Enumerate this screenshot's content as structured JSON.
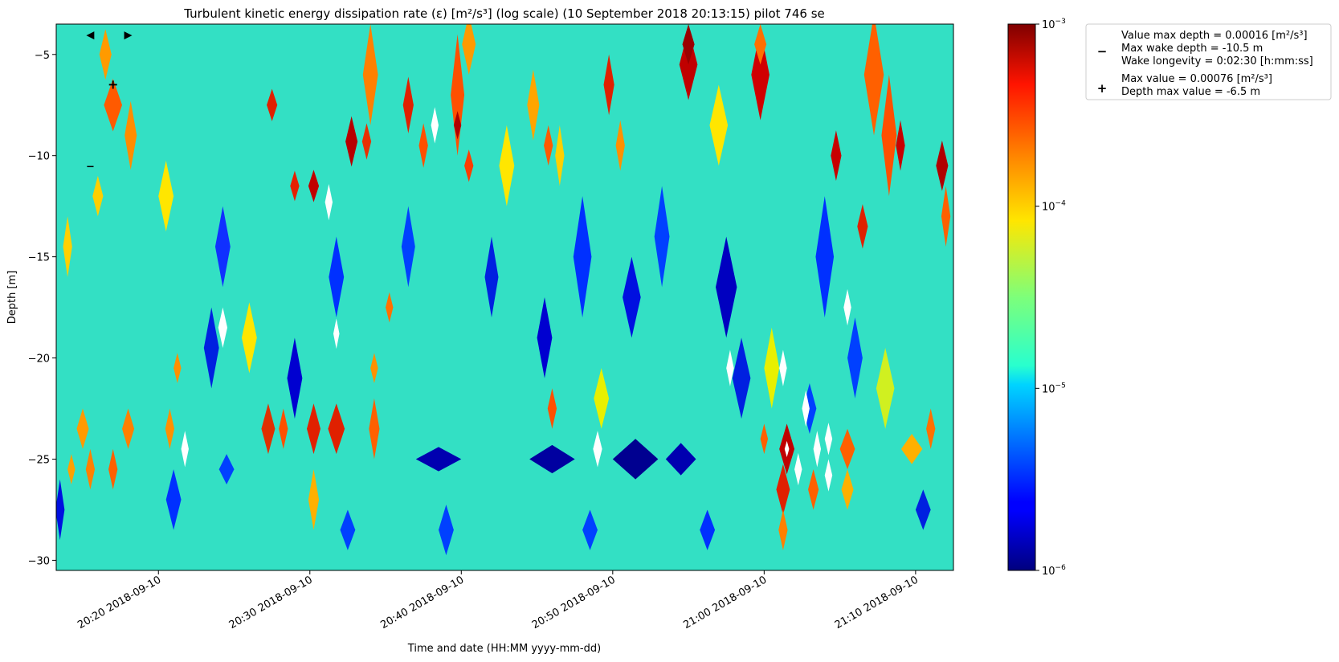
{
  "chart_data": {
    "type": "heatmap",
    "title": "Turbulent kinetic energy dissipation rate (ε) [m²/s³] (log scale) (10 September 2018 20:13:15) pilot 746 se",
    "xlabel": "Time and date (HH:MM yyyy-mm-dd)",
    "ylabel": "Depth [m]",
    "x_range": [
      "2018-09-10 20:13:15",
      "2018-09-10 21:12:30"
    ],
    "ylim": [
      -30.5,
      -3.5
    ],
    "x_ticks": [
      {
        "t": "2018-09-10 20:20",
        "label": "20:20 2018-09-10"
      },
      {
        "t": "2018-09-10 20:30",
        "label": "20:30 2018-09-10"
      },
      {
        "t": "2018-09-10 20:40",
        "label": "20:40 2018-09-10"
      },
      {
        "t": "2018-09-10 20:50",
        "label": "20:50 2018-09-10"
      },
      {
        "t": "2018-09-10 21:00",
        "label": "21:00 2018-09-10"
      },
      {
        "t": "2018-09-10 21:10",
        "label": "21:10 2018-09-10"
      }
    ],
    "y_ticks": [
      {
        "v": -5,
        "label": "−5"
      },
      {
        "v": -10,
        "label": "−10"
      },
      {
        "v": -15,
        "label": "−15"
      },
      {
        "v": -20,
        "label": "−20"
      },
      {
        "v": -25,
        "label": "−25"
      },
      {
        "v": -30,
        "label": "−30"
      }
    ],
    "colorbar": {
      "scale": "log",
      "range": [
        1e-06,
        0.001
      ],
      "colormap": "jet",
      "ticks": [
        {
          "v": 0.001,
          "base": "10",
          "exp": "−3"
        },
        {
          "v": 0.0001,
          "base": "10",
          "exp": "−4"
        },
        {
          "v": 1e-05,
          "base": "10",
          "exp": "−5"
        },
        {
          "v": 1e-06,
          "base": "10",
          "exp": "−6"
        }
      ]
    },
    "markers": [
      {
        "symbol": "◀",
        "t": "2018-09-10 20:15:30",
        "depth": -4.0
      },
      {
        "symbol": "▶",
        "t": "2018-09-10 20:18:00",
        "depth": -4.0
      },
      {
        "symbol": "+",
        "t": "2018-09-10 20:17:00",
        "depth": -6.5
      },
      {
        "symbol": "−",
        "t": "2018-09-10 20:15:30",
        "depth": -10.5
      }
    ],
    "field": {
      "background": "#33e0c4",
      "features": [
        {
          "t": "2018-09-10 20:17:00",
          "depth": -7.5,
          "w": 1.2,
          "h": 2.6,
          "v": "#ff5a00"
        },
        {
          "t": "2018-09-10 20:16:30",
          "depth": -5.0,
          "w": 0.8,
          "h": 2.5,
          "v": "#ff9a00"
        },
        {
          "t": "2018-09-10 20:18:10",
          "depth": -9.0,
          "w": 0.8,
          "h": 3.4,
          "v": "#ff8c00"
        },
        {
          "t": "2018-09-10 20:16:00",
          "depth": -12.0,
          "w": 0.7,
          "h": 2.0,
          "v": "#ffcf00"
        },
        {
          "t": "2018-09-10 20:27:30",
          "depth": -7.5,
          "w": 0.7,
          "h": 1.6,
          "v": "#e02000"
        },
        {
          "t": "2018-09-10 20:29:00",
          "depth": -11.5,
          "w": 0.6,
          "h": 1.5,
          "v": "#e62000"
        },
        {
          "t": "2018-09-10 20:30:15",
          "depth": -11.5,
          "w": 0.7,
          "h": 1.6,
          "v": "#c00000"
        },
        {
          "t": "2018-09-10 20:32:45",
          "depth": -9.3,
          "w": 0.8,
          "h": 2.5,
          "v": "#b80000"
        },
        {
          "t": "2018-09-10 20:34:00",
          "depth": -6.0,
          "w": 1.0,
          "h": 5.0,
          "v": "#ff8000"
        },
        {
          "t": "2018-09-10 20:33:45",
          "depth": -9.3,
          "w": 0.6,
          "h": 1.8,
          "v": "#e83000"
        },
        {
          "t": "2018-09-10 20:36:30",
          "depth": -7.5,
          "w": 0.7,
          "h": 2.8,
          "v": "#e02000"
        },
        {
          "t": "2018-09-10 20:37:30",
          "depth": -9.5,
          "w": 0.6,
          "h": 2.2,
          "v": "#ff5000"
        },
        {
          "t": "2018-09-10 20:39:45",
          "depth": -7.0,
          "w": 0.9,
          "h": 6.0,
          "v": "#ff5000"
        },
        {
          "t": "2018-09-10 20:39:45",
          "depth": -8.5,
          "w": 0.5,
          "h": 1.4,
          "v": "#b00000"
        },
        {
          "t": "2018-09-10 20:40:30",
          "depth": -4.5,
          "w": 0.9,
          "h": 3.0,
          "v": "#ff9a00"
        },
        {
          "t": "2018-09-10 20:40:30",
          "depth": -10.5,
          "w": 0.6,
          "h": 1.6,
          "v": "#ff3c00"
        },
        {
          "t": "2018-09-10 20:44:45",
          "depth": -7.5,
          "w": 0.8,
          "h": 3.5,
          "v": "#ffa500"
        },
        {
          "t": "2018-09-10 20:45:45",
          "depth": -9.5,
          "w": 0.6,
          "h": 2.0,
          "v": "#ff5a00"
        },
        {
          "t": "2018-09-10 20:49:45",
          "depth": -6.5,
          "w": 0.7,
          "h": 3.0,
          "v": "#e02000"
        },
        {
          "t": "2018-09-10 20:50:30",
          "depth": -9.5,
          "w": 0.6,
          "h": 2.5,
          "v": "#ff9000"
        },
        {
          "t": "2018-09-10 20:55:00",
          "depth": -5.5,
          "w": 1.2,
          "h": 3.5,
          "v": "#c00000"
        },
        {
          "t": "2018-09-10 20:55:00",
          "depth": -4.5,
          "w": 0.8,
          "h": 2.0,
          "v": "#9a0000"
        },
        {
          "t": "2018-09-10 20:59:45",
          "depth": -6.0,
          "w": 1.2,
          "h": 4.5,
          "v": "#d00000"
        },
        {
          "t": "2018-09-10 20:59:45",
          "depth": -4.5,
          "w": 0.8,
          "h": 2.0,
          "v": "#ff7000"
        },
        {
          "t": "2018-09-10 21:04:45",
          "depth": -10.0,
          "w": 0.7,
          "h": 2.5,
          "v": "#c80000"
        },
        {
          "t": "2018-09-10 21:06:30",
          "depth": -13.5,
          "w": 0.7,
          "h": 2.2,
          "v": "#e02000"
        },
        {
          "t": "2018-09-10 21:07:15",
          "depth": -6.0,
          "w": 1.3,
          "h": 6.0,
          "v": "#ff6000"
        },
        {
          "t": "2018-09-10 21:08:15",
          "depth": -9.0,
          "w": 1.0,
          "h": 6.0,
          "v": "#ff5000"
        },
        {
          "t": "2018-09-10 21:09:00",
          "depth": -9.5,
          "w": 0.6,
          "h": 2.5,
          "v": "#c80000"
        },
        {
          "t": "2018-09-10 21:11:45",
          "depth": -10.5,
          "w": 0.8,
          "h": 2.5,
          "v": "#b00000"
        },
        {
          "t": "2018-09-10 21:12:00",
          "depth": -13.0,
          "w": 0.6,
          "h": 3.0,
          "v": "#ff6000"
        },
        {
          "t": "2018-09-10 20:18:00",
          "depth": -23.5,
          "w": 0.8,
          "h": 2.0,
          "v": "#ff8000"
        },
        {
          "t": "2018-09-10 20:15:00",
          "depth": -23.5,
          "w": 0.8,
          "h": 2.0,
          "v": "#ff9a00"
        },
        {
          "t": "2018-09-10 20:17:00",
          "depth": -25.5,
          "w": 0.6,
          "h": 2.0,
          "v": "#ff6000"
        },
        {
          "t": "2018-09-10 20:15:30",
          "depth": -25.5,
          "w": 0.6,
          "h": 2.0,
          "v": "#ff8000"
        },
        {
          "t": "2018-09-10 20:14:15",
          "depth": -25.5,
          "w": 0.5,
          "h": 1.5,
          "v": "#ffa000"
        },
        {
          "t": "2018-09-10 20:27:15",
          "depth": -23.5,
          "w": 0.9,
          "h": 2.5,
          "v": "#e03000"
        },
        {
          "t": "2018-09-10 20:28:15",
          "depth": -23.5,
          "w": 0.6,
          "h": 2.0,
          "v": "#ff5000"
        },
        {
          "t": "2018-09-10 20:30:15",
          "depth": -23.5,
          "w": 0.9,
          "h": 2.5,
          "v": "#e02000"
        },
        {
          "t": "2018-09-10 20:31:45",
          "depth": -23.5,
          "w": 1.1,
          "h": 2.5,
          "v": "#e02000"
        },
        {
          "t": "2018-09-10 20:34:15",
          "depth": -23.5,
          "w": 0.7,
          "h": 3.0,
          "v": "#ff6000"
        },
        {
          "t": "2018-09-10 20:34:15",
          "depth": -20.5,
          "w": 0.5,
          "h": 1.5,
          "v": "#ff9000"
        },
        {
          "t": "2018-09-10 20:30:15",
          "depth": -27.0,
          "w": 0.7,
          "h": 3.0,
          "v": "#ffb000"
        },
        {
          "t": "2018-09-10 20:35:15",
          "depth": -17.5,
          "w": 0.5,
          "h": 1.5,
          "v": "#ff7000"
        },
        {
          "t": "2018-09-10 20:46:00",
          "depth": -22.5,
          "w": 0.6,
          "h": 2.0,
          "v": "#ff5000"
        },
        {
          "t": "2018-09-10 21:01:30",
          "depth": -24.5,
          "w": 1.0,
          "h": 2.5,
          "v": "#c00000"
        },
        {
          "t": "2018-09-10 21:01:15",
          "depth": -26.5,
          "w": 0.9,
          "h": 2.5,
          "v": "#e02000"
        },
        {
          "t": "2018-09-10 21:01:15",
          "depth": -28.5,
          "w": 0.6,
          "h": 2.0,
          "v": "#ff8000"
        },
        {
          "t": "2018-09-10 21:00:00",
          "depth": -24.0,
          "w": 0.5,
          "h": 1.5,
          "v": "#ff6000"
        },
        {
          "t": "2018-09-10 21:03:15",
          "depth": -26.5,
          "w": 0.7,
          "h": 2.0,
          "v": "#ff6000"
        },
        {
          "t": "2018-09-10 21:05:30",
          "depth": -24.5,
          "w": 1.0,
          "h": 2.0,
          "v": "#ff6000"
        },
        {
          "t": "2018-09-10 21:05:30",
          "depth": -26.5,
          "w": 0.8,
          "h": 2.0,
          "v": "#ffb000"
        },
        {
          "t": "2018-09-10 21:09:45",
          "depth": -24.5,
          "w": 1.4,
          "h": 1.5,
          "v": "#ffb000"
        },
        {
          "t": "2018-09-10 21:11:00",
          "depth": -23.5,
          "w": 0.6,
          "h": 2.0,
          "v": "#ff7000"
        },
        {
          "t": "2018-09-10 20:20:45",
          "depth": -23.5,
          "w": 0.6,
          "h": 2.0,
          "v": "#ff9000"
        },
        {
          "t": "2018-09-10 20:21:15",
          "depth": -20.5,
          "w": 0.5,
          "h": 1.5,
          "v": "#ff9000"
        },
        {
          "t": "2018-09-10 20:24:15",
          "depth": -14.5,
          "w": 1.0,
          "h": 4.0,
          "v": "#1030ff"
        },
        {
          "t": "2018-09-10 20:23:30",
          "depth": -19.5,
          "w": 1.0,
          "h": 4.0,
          "v": "#0020e0"
        },
        {
          "t": "2018-09-10 20:29:00",
          "depth": -21.0,
          "w": 1.0,
          "h": 4.0,
          "v": "#0000d0"
        },
        {
          "t": "2018-09-10 20:31:45",
          "depth": -16.0,
          "w": 1.0,
          "h": 4.0,
          "v": "#0030ff"
        },
        {
          "t": "2018-09-10 20:36:30",
          "depth": -14.5,
          "w": 0.9,
          "h": 4.0,
          "v": "#0040ff"
        },
        {
          "t": "2018-09-10 20:42:00",
          "depth": -16.0,
          "w": 0.9,
          "h": 4.0,
          "v": "#0020e0"
        },
        {
          "t": "2018-09-10 20:45:30",
          "depth": -19.0,
          "w": 1.0,
          "h": 4.0,
          "v": "#0000d0"
        },
        {
          "t": "2018-09-10 20:48:00",
          "depth": -15.0,
          "w": 1.2,
          "h": 6.0,
          "v": "#0030ff"
        },
        {
          "t": "2018-09-10 20:51:15",
          "depth": -17.0,
          "w": 1.2,
          "h": 4.0,
          "v": "#0010e0"
        },
        {
          "t": "2018-09-10 20:53:15",
          "depth": -14.0,
          "w": 1.0,
          "h": 5.0,
          "v": "#0040ff"
        },
        {
          "t": "2018-09-10 20:57:30",
          "depth": -16.5,
          "w": 1.4,
          "h": 5.0,
          "v": "#0000c0"
        },
        {
          "t": "2018-09-10 20:58:30",
          "depth": -21.0,
          "w": 1.2,
          "h": 4.0,
          "v": "#0020e0"
        },
        {
          "t": "2018-09-10 21:04:00",
          "depth": -15.0,
          "w": 1.2,
          "h": 6.0,
          "v": "#0030ff"
        },
        {
          "t": "2018-09-10 21:06:00",
          "depth": -20.0,
          "w": 1.0,
          "h": 4.0,
          "v": "#0040ff"
        },
        {
          "t": "2018-09-10 20:38:30",
          "depth": -25.0,
          "w": 3.0,
          "h": 1.2,
          "v": "#0000b0"
        },
        {
          "t": "2018-09-10 20:46:00",
          "depth": -25.0,
          "w": 3.0,
          "h": 1.4,
          "v": "#0000a0"
        },
        {
          "t": "2018-09-10 20:51:30",
          "depth": -25.0,
          "w": 3.0,
          "h": 2.0,
          "v": "#000090"
        },
        {
          "t": "2018-09-10 20:54:30",
          "depth": -25.0,
          "w": 2.0,
          "h": 1.6,
          "v": "#0000b0"
        },
        {
          "t": "2018-09-10 20:13:30",
          "depth": -27.5,
          "w": 0.6,
          "h": 3.0,
          "v": "#0010e0"
        },
        {
          "t": "2018-09-10 20:21:00",
          "depth": -27.0,
          "w": 1.0,
          "h": 3.0,
          "v": "#0030ff"
        },
        {
          "t": "2018-09-10 20:24:30",
          "depth": -25.5,
          "w": 1.0,
          "h": 1.5,
          "v": "#0040ff"
        },
        {
          "t": "2018-09-10 20:32:30",
          "depth": -28.5,
          "w": 1.0,
          "h": 2.0,
          "v": "#0040ff"
        },
        {
          "t": "2018-09-10 20:39:00",
          "depth": -28.5,
          "w": 1.0,
          "h": 2.5,
          "v": "#0040ff"
        },
        {
          "t": "2018-09-10 20:48:30",
          "depth": -28.5,
          "w": 1.0,
          "h": 2.0,
          "v": "#0040ff"
        },
        {
          "t": "2018-09-10 20:56:15",
          "depth": -28.5,
          "w": 1.0,
          "h": 2.0,
          "v": "#0030ff"
        },
        {
          "t": "2018-09-10 21:10:30",
          "depth": -27.5,
          "w": 1.0,
          "h": 2.0,
          "v": "#0020e0"
        },
        {
          "t": "2018-09-10 21:03:00",
          "depth": -22.5,
          "w": 0.9,
          "h": 2.5,
          "v": "#0040ff"
        },
        {
          "t": "2018-09-10 20:20:30",
          "depth": -12.0,
          "w": 1.0,
          "h": 3.5,
          "v": "#ffe600"
        },
        {
          "t": "2018-09-10 20:26:00",
          "depth": -19.0,
          "w": 1.0,
          "h": 3.5,
          "v": "#ffe600"
        },
        {
          "t": "2018-09-10 20:43:00",
          "depth": -10.5,
          "w": 1.0,
          "h": 4.0,
          "v": "#ffe600"
        },
        {
          "t": "2018-09-10 20:49:15",
          "depth": -22.0,
          "w": 1.0,
          "h": 3.0,
          "v": "#e8f000"
        },
        {
          "t": "2018-09-10 20:57:00",
          "depth": -8.5,
          "w": 1.2,
          "h": 4.0,
          "v": "#ffe600"
        },
        {
          "t": "2018-09-10 21:00:30",
          "depth": -20.5,
          "w": 1.0,
          "h": 4.0,
          "v": "#e8f000"
        },
        {
          "t": "2018-09-10 21:08:00",
          "depth": -21.5,
          "w": 1.2,
          "h": 4.0,
          "v": "#d0f020"
        },
        {
          "t": "2018-09-10 20:14:00",
          "depth": -14.5,
          "w": 0.6,
          "h": 3.0,
          "v": "#ffd000"
        },
        {
          "t": "2018-09-10 20:46:30",
          "depth": -10.0,
          "w": 0.6,
          "h": 3.0,
          "v": "#ffd000"
        }
      ],
      "gaps": [
        {
          "t": "2018-09-10 20:24:15",
          "depth": -18.5,
          "w": 0.6,
          "h": 2.0
        },
        {
          "t": "2018-09-10 20:31:15",
          "depth": -12.3,
          "w": 0.5,
          "h": 1.8
        },
        {
          "t": "2018-09-10 20:31:45",
          "depth": -18.8,
          "w": 0.4,
          "h": 1.5
        },
        {
          "t": "2018-09-10 20:38:15",
          "depth": -8.5,
          "w": 0.5,
          "h": 1.8
        },
        {
          "t": "2018-09-10 20:21:45",
          "depth": -24.5,
          "w": 0.5,
          "h": 1.8
        },
        {
          "t": "2018-09-10 20:49:00",
          "depth": -24.5,
          "w": 0.6,
          "h": 1.8
        },
        {
          "t": "2018-09-10 20:57:45",
          "depth": -20.5,
          "w": 0.5,
          "h": 1.8
        },
        {
          "t": "2018-09-10 21:01:15",
          "depth": -20.5,
          "w": 0.5,
          "h": 1.8
        },
        {
          "t": "2018-09-10 21:05:30",
          "depth": -17.5,
          "w": 0.5,
          "h": 1.8
        },
        {
          "t": "2018-09-10 21:02:45",
          "depth": -22.5,
          "w": 0.5,
          "h": 1.8
        },
        {
          "t": "2018-09-10 21:03:30",
          "depth": -24.5,
          "w": 0.5,
          "h": 1.8
        },
        {
          "t": "2018-09-10 21:02:15",
          "depth": -25.5,
          "w": 0.5,
          "h": 1.6
        },
        {
          "t": "2018-09-10 21:04:15",
          "depth": -25.8,
          "w": 0.5,
          "h": 1.6
        },
        {
          "t": "2018-09-10 21:04:15",
          "depth": -24.0,
          "w": 0.5,
          "h": 1.6
        },
        {
          "t": "2018-09-10 21:01:30",
          "depth": -24.5,
          "w": 0.3,
          "h": 0.8
        }
      ]
    },
    "legend": {
      "placement": "outside top-right",
      "entries": [
        {
          "symbol": "−",
          "lines": [
            "Value max depth = 0.00016 [m²/s³]",
            "Max wake depth = -10.5 m",
            "Wake longevity = 0:02:30 [h:mm:ss]"
          ]
        },
        {
          "symbol": "+",
          "lines": [
            "Max value = 0.00076 [m²/s³]",
            "Depth max value = -6.5 m"
          ]
        }
      ]
    }
  }
}
